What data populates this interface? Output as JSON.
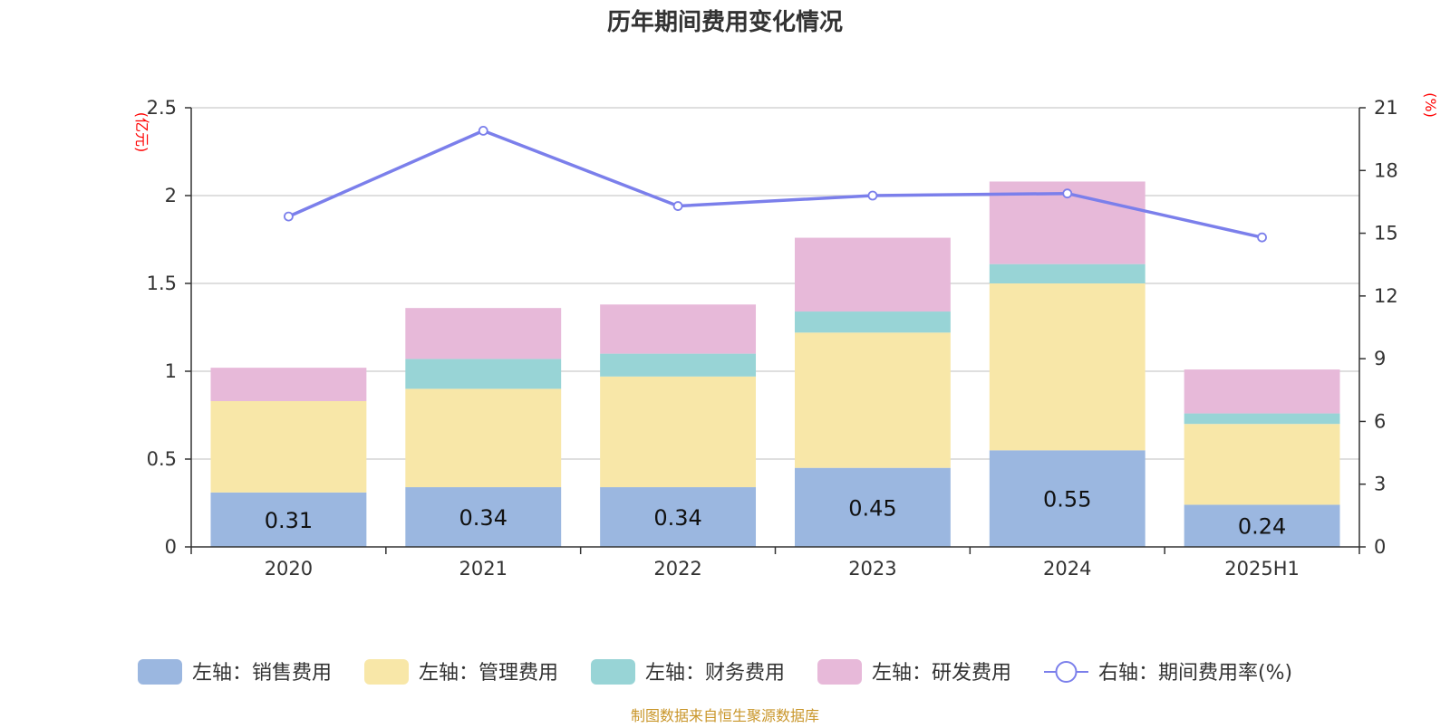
{
  "chart_data": {
    "type": "bar",
    "title": "历年期间费用变化情况",
    "left_axis_unit": "(亿元)",
    "right_axis_unit": "(%)",
    "categories": [
      "2020",
      "2021",
      "2022",
      "2023",
      "2024",
      "2025H1"
    ],
    "y_left": {
      "range": [
        0,
        2.5
      ],
      "ticks": [
        "0",
        "0.5",
        "1",
        "1.5",
        "2",
        "2.5"
      ]
    },
    "y_right": {
      "range": [
        0,
        21
      ],
      "ticks": [
        "0",
        "3",
        "6",
        "9",
        "12",
        "15",
        "18",
        "21"
      ]
    },
    "grid": true,
    "legend_position": "bottom",
    "series": [
      {
        "name": "左轴：销售费用",
        "axis": "left",
        "kind": "bar",
        "color": "#9BB7E0",
        "values": [
          0.31,
          0.34,
          0.34,
          0.45,
          0.55,
          0.24
        ],
        "labels": [
          "0.31",
          "0.34",
          "0.34",
          "0.45",
          "0.55",
          "0.24"
        ]
      },
      {
        "name": "左轴：管理费用",
        "axis": "left",
        "kind": "bar",
        "color": "#F8E7A8",
        "values": [
          0.52,
          0.56,
          0.63,
          0.77,
          0.95,
          0.46
        ]
      },
      {
        "name": "左轴：财务费用",
        "axis": "left",
        "kind": "bar",
        "color": "#98D4D6",
        "values": [
          0.0,
          0.17,
          0.13,
          0.12,
          0.11,
          0.06
        ]
      },
      {
        "name": "左轴：研发费用",
        "axis": "left",
        "kind": "bar",
        "color": "#E7B9D9",
        "values": [
          0.19,
          0.29,
          0.28,
          0.42,
          0.47,
          0.25
        ]
      },
      {
        "name": "右轴：期间费用率(%)",
        "axis": "right",
        "kind": "line",
        "color": "#7B7FEB",
        "values": [
          15.8,
          19.9,
          16.3,
          16.8,
          16.9,
          14.8
        ]
      }
    ],
    "source": "制图数据来自恒生聚源数据库"
  },
  "colors": {
    "title": "#333333",
    "axis_unit": "#FF0000",
    "source": "#C9962A",
    "axis": "#333333",
    "grid": "#CCCCCC",
    "tick_label": "#333333"
  }
}
